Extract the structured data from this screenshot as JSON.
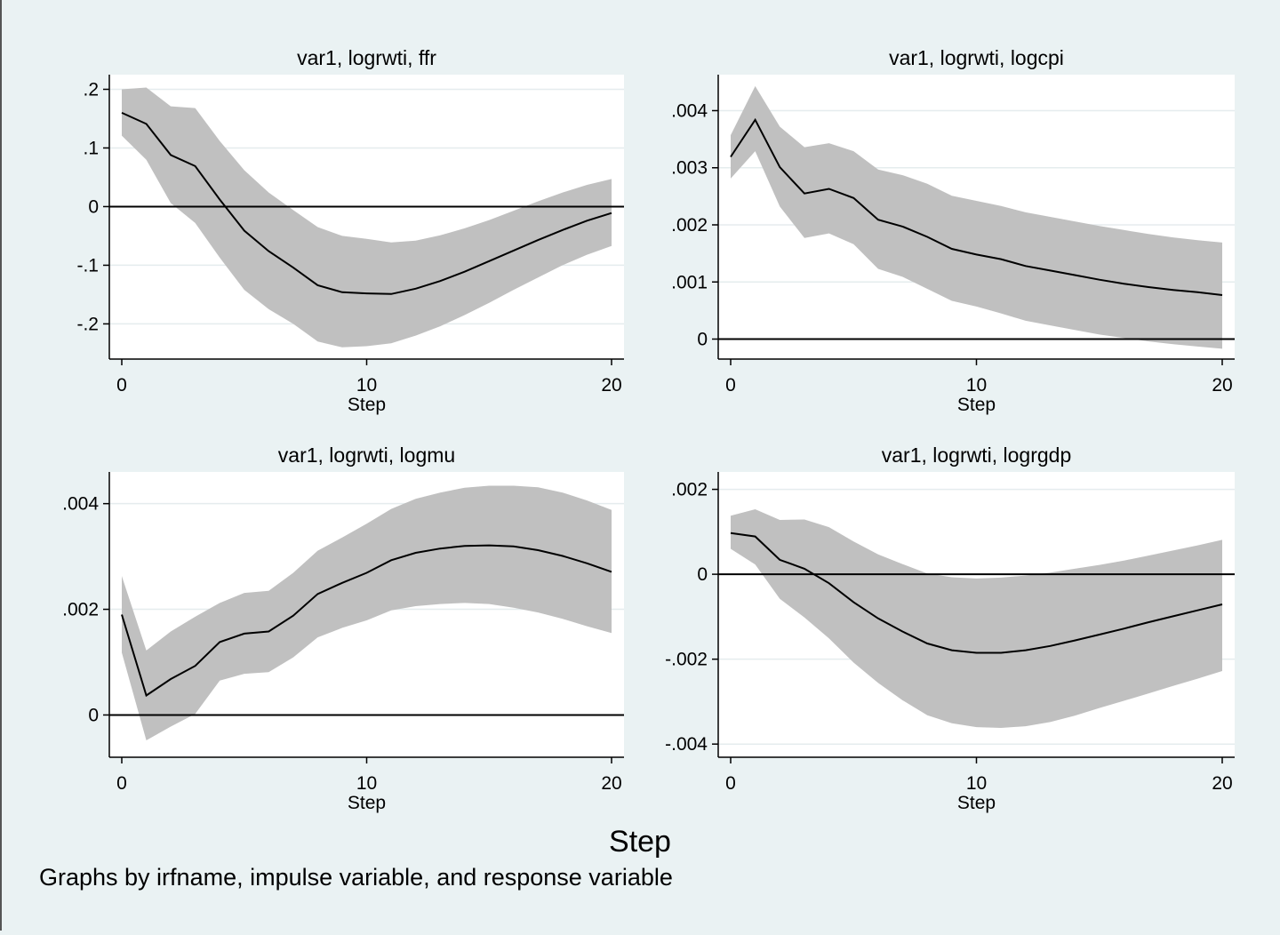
{
  "chart_data": [
    {
      "type": "line",
      "title": "var1, logrwti, ffr",
      "xlabel": "Step",
      "ylabel": "",
      "xlim": [
        0,
        20
      ],
      "ylim": [
        -0.26,
        0.225
      ],
      "xticks": [
        0,
        10,
        20
      ],
      "xtick_labels": [
        "0",
        "10",
        "20"
      ],
      "yticks": [
        -0.2,
        -0.1,
        0,
        0.1,
        0.2
      ],
      "ytick_labels": [
        "-.2",
        "-.1",
        "0",
        ".1",
        ".2"
      ],
      "grid": true,
      "zero_line": true,
      "x": [
        0,
        1,
        2,
        3,
        4,
        5,
        6,
        7,
        8,
        9,
        10,
        11,
        12,
        13,
        14,
        15,
        16,
        17,
        18,
        19,
        20
      ],
      "series": [
        {
          "role": "ci_upper",
          "values": [
            0.2,
            0.203,
            0.171,
            0.168,
            0.112,
            0.062,
            0.024,
            -0.006,
            -0.035,
            -0.05,
            -0.055,
            -0.061,
            -0.058,
            -0.049,
            -0.037,
            -0.023,
            -0.007,
            0.009,
            0.024,
            0.037,
            0.047
          ]
        },
        {
          "role": "estimate",
          "values": [
            0.16,
            0.141,
            0.088,
            0.069,
            0.012,
            -0.041,
            -0.076,
            -0.104,
            -0.134,
            -0.146,
            -0.148,
            -0.149,
            -0.14,
            -0.127,
            -0.111,
            -0.093,
            -0.075,
            -0.057,
            -0.04,
            -0.024,
            -0.011
          ]
        },
        {
          "role": "ci_lower",
          "values": [
            0.121,
            0.08,
            0.006,
            -0.028,
            -0.087,
            -0.142,
            -0.175,
            -0.2,
            -0.23,
            -0.24,
            -0.238,
            -0.233,
            -0.22,
            -0.204,
            -0.185,
            -0.164,
            -0.142,
            -0.121,
            -0.1,
            -0.082,
            -0.067
          ]
        }
      ]
    },
    {
      "type": "line",
      "title": "var1, logrwti, logcpi",
      "xlabel": "Step",
      "ylabel": "",
      "xlim": [
        0,
        20
      ],
      "ylim": [
        -0.00035,
        0.00463
      ],
      "xticks": [
        0,
        10,
        20
      ],
      "xtick_labels": [
        "0",
        "10",
        "20"
      ],
      "yticks": [
        0,
        0.001,
        0.002,
        0.003,
        0.004
      ],
      "ytick_labels": [
        "0",
        ".001",
        ".002",
        ".003",
        ".004"
      ],
      "grid": true,
      "zero_line": true,
      "x": [
        0,
        1,
        2,
        3,
        4,
        5,
        6,
        7,
        8,
        9,
        10,
        11,
        12,
        13,
        14,
        15,
        16,
        17,
        18,
        19,
        20
      ],
      "series": [
        {
          "role": "ci_upper",
          "values": [
            0.00357,
            0.00443,
            0.00372,
            0.00336,
            0.00343,
            0.00329,
            0.00297,
            0.00287,
            0.00272,
            0.00251,
            0.00242,
            0.00233,
            0.00222,
            0.00214,
            0.00206,
            0.00198,
            0.00191,
            0.00184,
            0.00178,
            0.00173,
            0.00169
          ]
        },
        {
          "role": "estimate",
          "values": [
            0.00319,
            0.00384,
            0.00301,
            0.00255,
            0.00263,
            0.00247,
            0.00209,
            0.00197,
            0.00179,
            0.00158,
            0.00148,
            0.0014,
            0.00128,
            0.0012,
            0.00112,
            0.00104,
            0.00097,
            0.00091,
            0.00086,
            0.00082,
            0.00077
          ]
        },
        {
          "role": "ci_lower",
          "values": [
            0.00281,
            0.00329,
            0.00232,
            0.00177,
            0.00185,
            0.00166,
            0.00123,
            0.00109,
            0.00088,
            0.00067,
            0.00057,
            0.00045,
            0.00032,
            0.00024,
            0.00016,
            8e-05,
            2e-05,
            -4e-05,
            -9e-05,
            -0.00013,
            -0.00017
          ]
        }
      ]
    },
    {
      "type": "line",
      "title": "var1, logrwti, logmu",
      "xlabel": "Step",
      "ylabel": "",
      "xlim": [
        0,
        20
      ],
      "ylim": [
        -0.0008,
        0.0046
      ],
      "xticks": [
        0,
        10,
        20
      ],
      "xtick_labels": [
        "0",
        "10",
        "20"
      ],
      "yticks": [
        0,
        0.002,
        0.004
      ],
      "ytick_labels": [
        "0",
        ".002",
        ".004"
      ],
      "grid": true,
      "zero_line": true,
      "x": [
        0,
        1,
        2,
        3,
        4,
        5,
        6,
        7,
        8,
        9,
        10,
        11,
        12,
        13,
        14,
        15,
        16,
        17,
        18,
        19,
        20
      ],
      "series": [
        {
          "role": "ci_upper",
          "values": [
            0.00263,
            0.00122,
            0.00158,
            0.00186,
            0.00212,
            0.00231,
            0.00235,
            0.00269,
            0.00311,
            0.00336,
            0.00362,
            0.0039,
            0.00409,
            0.00421,
            0.0043,
            0.00434,
            0.00434,
            0.00431,
            0.00421,
            0.00406,
            0.00388
          ]
        },
        {
          "role": "estimate",
          "values": [
            0.0019,
            0.00037,
            0.00068,
            0.00093,
            0.00138,
            0.00154,
            0.00158,
            0.00188,
            0.00229,
            0.0025,
            0.00269,
            0.00293,
            0.00307,
            0.00315,
            0.0032,
            0.00321,
            0.00319,
            0.00312,
            0.00301,
            0.00287,
            0.00271
          ]
        },
        {
          "role": "ci_lower",
          "values": [
            0.00118,
            -0.00048,
            -0.00022,
            2e-05,
            0.00065,
            0.00078,
            0.00081,
            0.00109,
            0.00147,
            0.00165,
            0.00179,
            0.00198,
            0.00206,
            0.0021,
            0.00212,
            0.0021,
            0.00203,
            0.00194,
            0.00182,
            0.00168,
            0.00155
          ]
        }
      ]
    },
    {
      "type": "line",
      "title": "var1, logrwti, logrgdp",
      "xlabel": "Step",
      "ylabel": "",
      "xlim": [
        0,
        20
      ],
      "ylim": [
        -0.00431,
        0.00241
      ],
      "xticks": [
        0,
        10,
        20
      ],
      "xtick_labels": [
        "0",
        "10",
        "20"
      ],
      "yticks": [
        -0.004,
        -0.002,
        0,
        0.002
      ],
      "ytick_labels": [
        "-.004",
        "-.002",
        "0",
        ".002"
      ],
      "grid": true,
      "zero_line": true,
      "x": [
        0,
        1,
        2,
        3,
        4,
        5,
        6,
        7,
        8,
        9,
        10,
        11,
        12,
        13,
        14,
        15,
        16,
        17,
        18,
        19,
        20
      ],
      "series": [
        {
          "role": "ci_upper",
          "values": [
            0.00138,
            0.00153,
            0.00128,
            0.00129,
            0.00111,
            0.00077,
            0.00047,
            0.00024,
            2e-05,
            -7e-05,
            -0.0001,
            -8e-05,
            -3e-05,
            4e-05,
            0.00013,
            0.00022,
            0.00032,
            0.00044,
            0.00056,
            0.00068,
            0.00081
          ]
        },
        {
          "role": "estimate",
          "values": [
            0.00097,
            0.00089,
            0.00034,
            0.00013,
            -0.00021,
            -0.00066,
            -0.00104,
            -0.00135,
            -0.00163,
            -0.00179,
            -0.00185,
            -0.00185,
            -0.00179,
            -0.00169,
            -0.00156,
            -0.00142,
            -0.00128,
            -0.00113,
            -0.00099,
            -0.00085,
            -0.00071
          ]
        },
        {
          "role": "ci_lower",
          "values": [
            0.0006,
            0.00023,
            -0.00058,
            -0.00102,
            -0.00151,
            -0.00208,
            -0.00256,
            -0.00297,
            -0.00332,
            -0.00351,
            -0.0036,
            -0.00362,
            -0.00358,
            -0.00348,
            -0.00333,
            -0.00315,
            -0.00298,
            -0.00281,
            -0.00263,
            -0.00246,
            -0.00228
          ]
        }
      ]
    }
  ],
  "overall_xlabel": "Step",
  "note": "Graphs by irfname, impulse variable, and response variable",
  "colors": {
    "background": "#eaf2f3",
    "plot_background": "#ffffff",
    "band": "#c0c0c0",
    "line": "#000000",
    "grid": "#e5ecee"
  }
}
